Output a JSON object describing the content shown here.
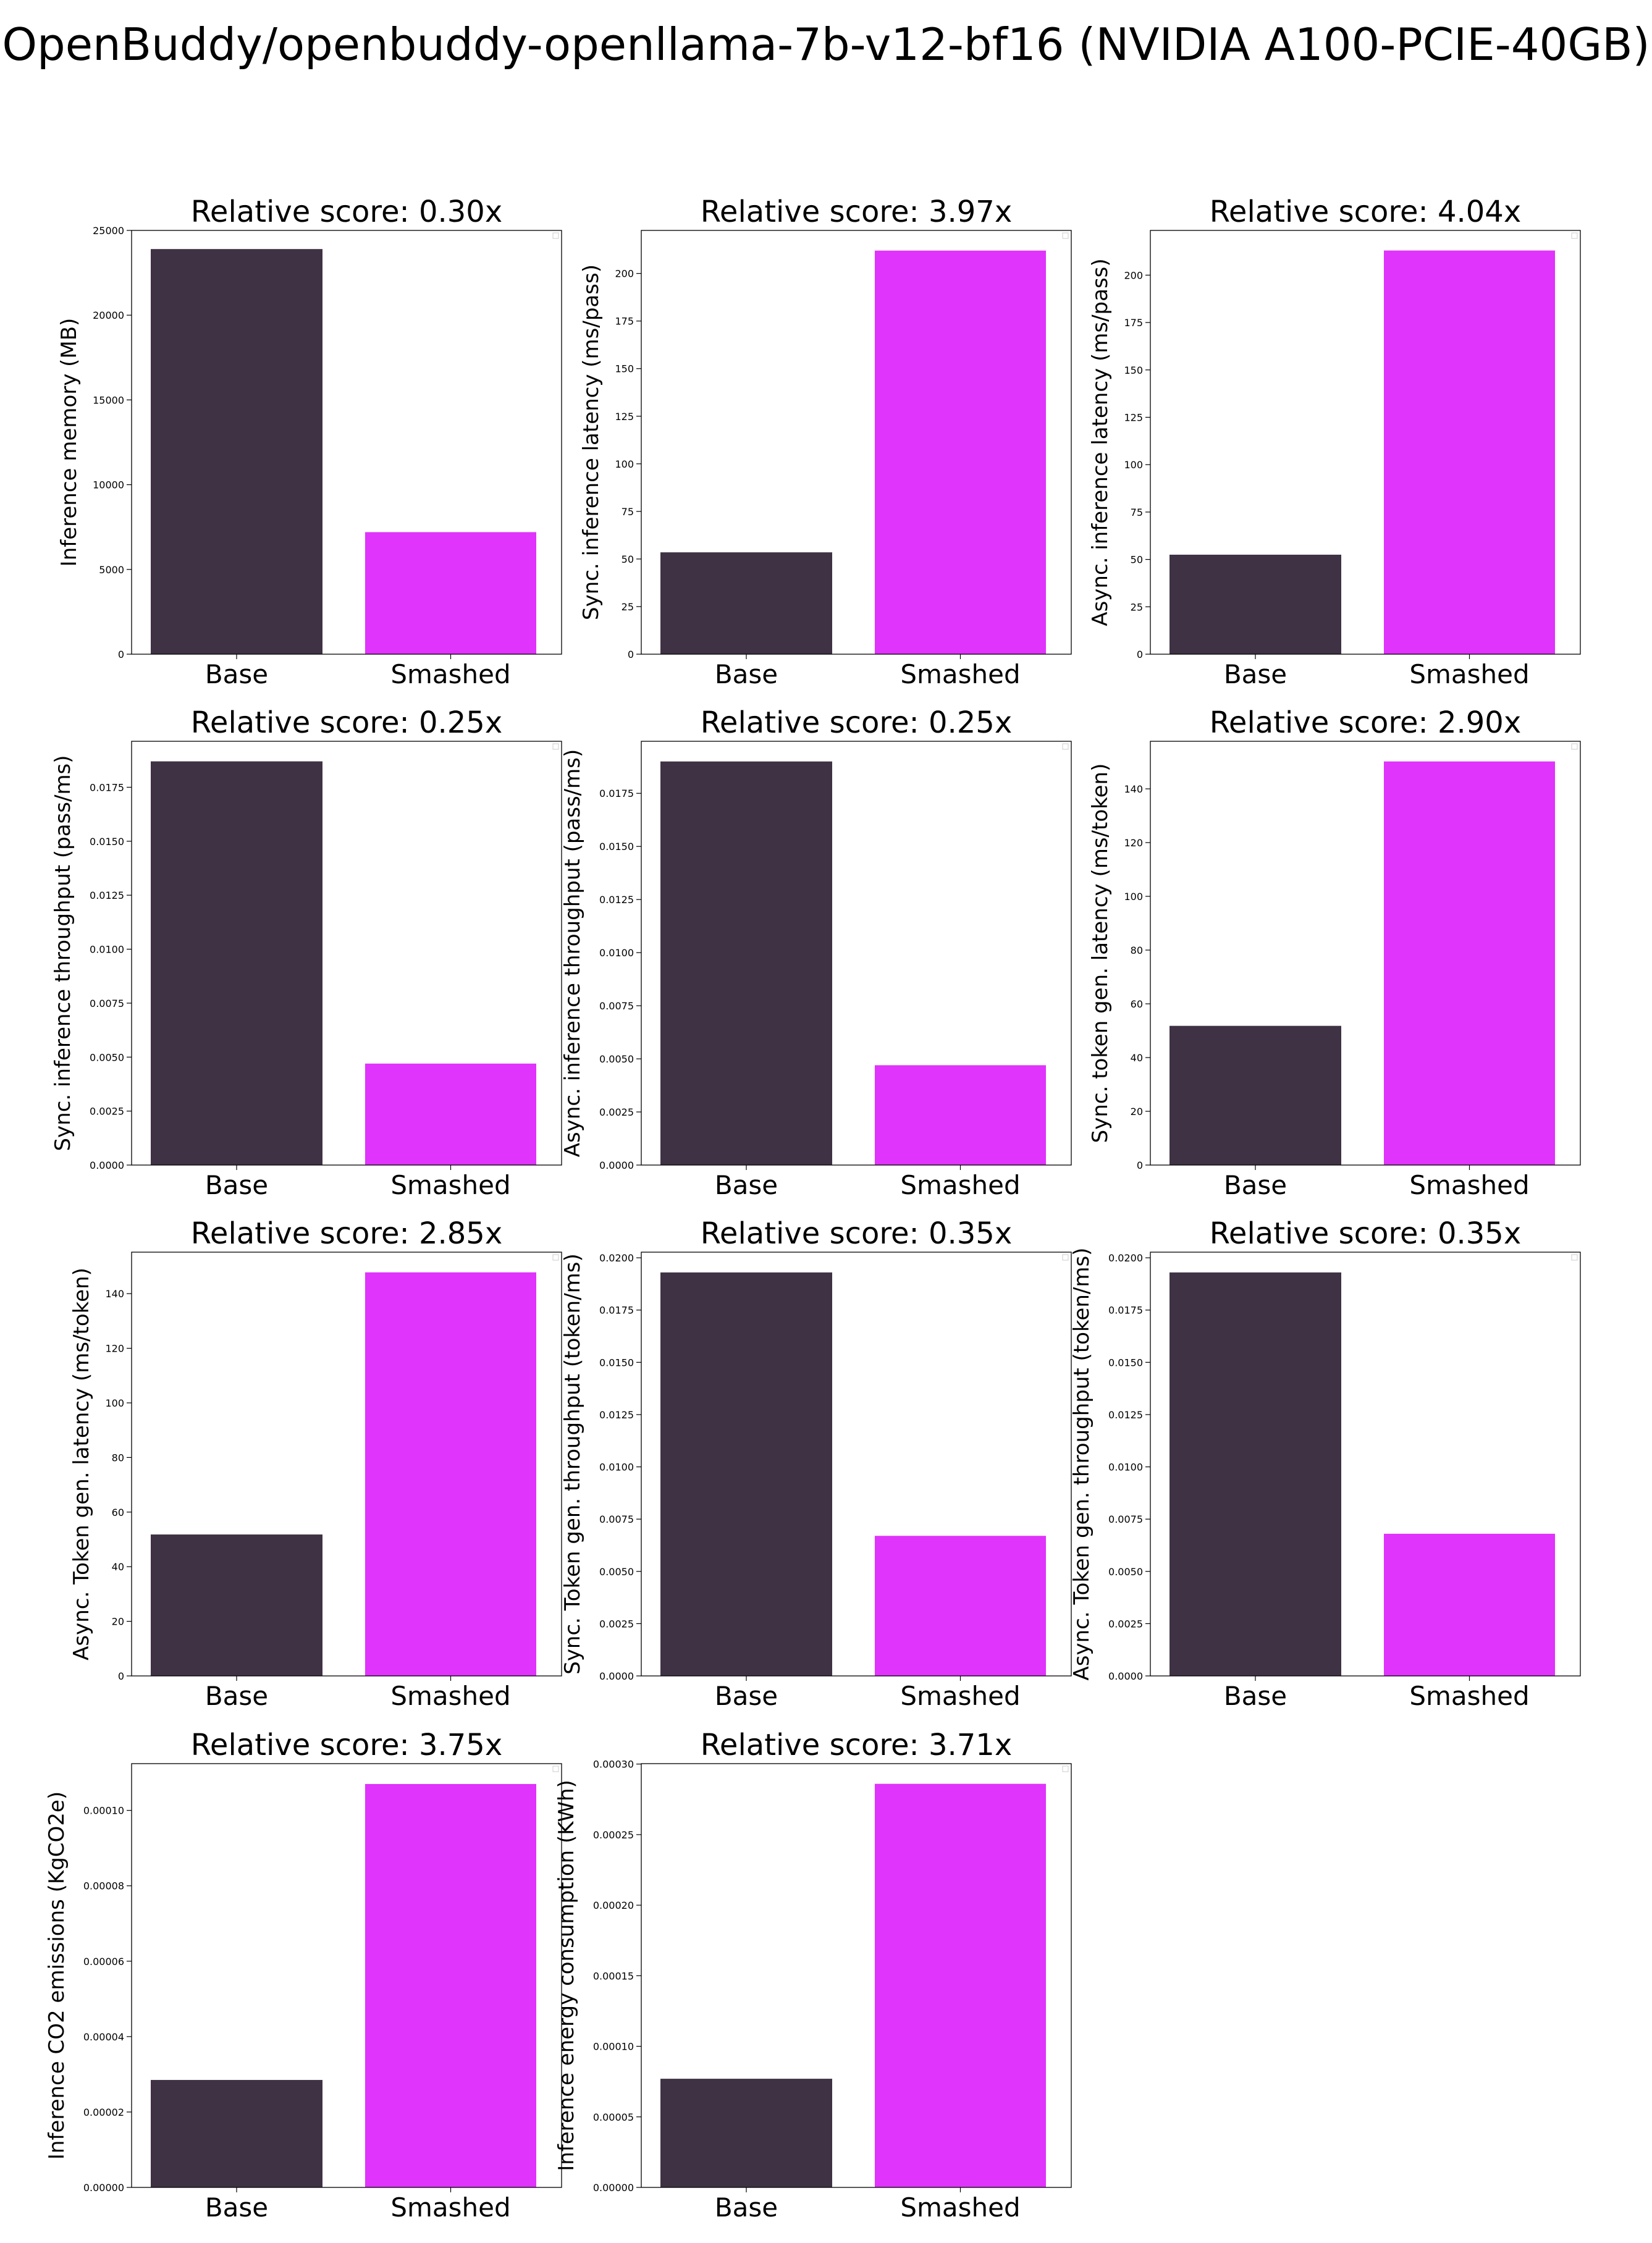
{
  "title": "OpenBuddy/openbuddy-openllama-7b-v12-bf16 (NVIDIA A100-PCIE-40GB)",
  "colors": {
    "base": "#3f3244",
    "smashed": "#e033fb"
  },
  "chart_data": [
    {
      "type": "bar",
      "title": "Relative score: 0.30x",
      "ylabel": "Inference memory (MB)",
      "categories": [
        "Base",
        "Smashed"
      ],
      "values": [
        23900,
        7200
      ],
      "ylim": [
        0,
        25000
      ],
      "yticks": [
        "0",
        "5000",
        "10000",
        "15000",
        "20000",
        "25000"
      ]
    },
    {
      "type": "bar",
      "title": "Relative score: 3.97x",
      "ylabel": "Sync. inference latency (ms/pass)",
      "categories": [
        "Base",
        "Smashed"
      ],
      "values": [
        53.5,
        212
      ],
      "ylim": [
        0,
        222.6
      ],
      "yticks": [
        "0",
        "25",
        "50",
        "75",
        "100",
        "125",
        "150",
        "175",
        "200"
      ]
    },
    {
      "type": "bar",
      "title": "Relative score: 4.04x",
      "ylabel": "Async. inference latency (ms/pass)",
      "categories": [
        "Base",
        "Smashed"
      ],
      "values": [
        52.5,
        213
      ],
      "ylim": [
        0,
        223.6
      ],
      "yticks": [
        "0",
        "25",
        "50",
        "75",
        "100",
        "125",
        "150",
        "175",
        "200"
      ]
    },
    {
      "type": "bar",
      "title": "Relative score: 0.25x",
      "ylabel": "Sync. inference throughput (pass/ms)",
      "categories": [
        "Base",
        "Smashed"
      ],
      "values": [
        0.0187,
        0.0047
      ],
      "ylim": [
        0,
        0.01963
      ],
      "yticks": [
        "0.0000",
        "0.0025",
        "0.0050",
        "0.0075",
        "0.0100",
        "0.0125",
        "0.0150",
        "0.0175"
      ]
    },
    {
      "type": "bar",
      "title": "Relative score: 0.25x",
      "ylabel": "Async. inference throughput (pass/ms)",
      "categories": [
        "Base",
        "Smashed"
      ],
      "values": [
        0.019,
        0.0047
      ],
      "ylim": [
        0,
        0.01995
      ],
      "yticks": [
        "0.0000",
        "0.0025",
        "0.0050",
        "0.0075",
        "0.0100",
        "0.0125",
        "0.0150",
        "0.0175"
      ]
    },
    {
      "type": "bar",
      "title": "Relative score: 2.90x",
      "ylabel": "Sync. token gen. latency (ms/token)",
      "categories": [
        "Base",
        "Smashed"
      ],
      "values": [
        51.8,
        150.2
      ],
      "ylim": [
        0,
        157.7
      ],
      "yticks": [
        "0",
        "20",
        "40",
        "60",
        "80",
        "100",
        "120",
        "140"
      ]
    },
    {
      "type": "bar",
      "title": "Relative score: 2.85x",
      "ylabel": "Async. Token gen. latency (ms/token)",
      "categories": [
        "Base",
        "Smashed"
      ],
      "values": [
        51.8,
        147.8
      ],
      "ylim": [
        0,
        155.2
      ],
      "yticks": [
        "0",
        "20",
        "40",
        "60",
        "80",
        "100",
        "120",
        "140"
      ]
    },
    {
      "type": "bar",
      "title": "Relative score: 0.35x",
      "ylabel": "Sync. Token gen. throughput (token/ms)",
      "categories": [
        "Base",
        "Smashed"
      ],
      "values": [
        0.0193,
        0.0067
      ],
      "ylim": [
        0,
        0.02027
      ],
      "yticks": [
        "0.0000",
        "0.0025",
        "0.0050",
        "0.0075",
        "0.0100",
        "0.0125",
        "0.0150",
        "0.0175",
        "0.0200"
      ]
    },
    {
      "type": "bar",
      "title": "Relative score: 0.35x",
      "ylabel": "Async. Token gen. throughput (token/ms)",
      "categories": [
        "Base",
        "Smashed"
      ],
      "values": [
        0.0193,
        0.0068
      ],
      "ylim": [
        0,
        0.02027
      ],
      "yticks": [
        "0.0000",
        "0.0025",
        "0.0050",
        "0.0075",
        "0.0100",
        "0.0125",
        "0.0150",
        "0.0175",
        "0.0200"
      ]
    },
    {
      "type": "bar",
      "title": "Relative score: 3.75x",
      "ylabel": "Inference CO2 emissions (KgCO2e)",
      "categories": [
        "Base",
        "Smashed"
      ],
      "values": [
        2.85e-05,
        0.000107
      ],
      "ylim": [
        0,
        0.0001124
      ],
      "yticks": [
        "0.00000",
        "0.00002",
        "0.00004",
        "0.00006",
        "0.00008",
        "0.00010"
      ]
    },
    {
      "type": "bar",
      "title": "Relative score: 3.71x",
      "ylabel": "Inference energy consumption (KWh)",
      "categories": [
        "Base",
        "Smashed"
      ],
      "values": [
        7.7e-05,
        0.000286
      ],
      "ylim": [
        0,
        0.0003003
      ],
      "yticks": [
        "0.00000",
        "0.00005",
        "0.00010",
        "0.00015",
        "0.00020",
        "0.00025",
        "0.00030"
      ]
    }
  ]
}
